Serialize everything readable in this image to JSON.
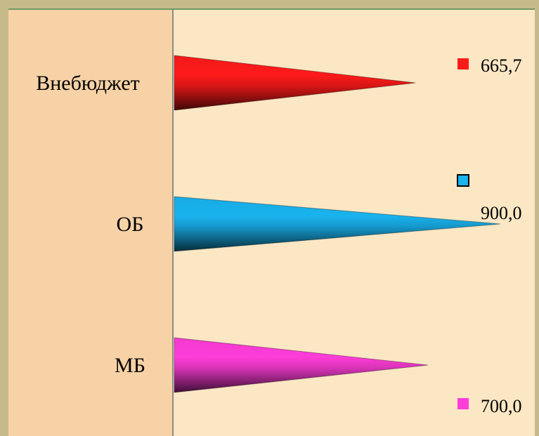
{
  "chart_data": {
    "type": "bar",
    "categories": [
      "Внебюджет",
      "ОБ",
      "МБ"
    ],
    "values": [
      665.7,
      900.0,
      700.0
    ],
    "value_labels": [
      "665,7",
      "900,0",
      "700,0"
    ],
    "bar_style": "cone",
    "orientation": "horizontal",
    "colors": [
      "#ff1a1a",
      "#19b3ee",
      "#ff3dd9"
    ],
    "title": "",
    "xlabel": "",
    "ylabel": "",
    "xlim": [
      0,
      900
    ],
    "legend": "right"
  },
  "colors": {
    "background": "#fbe7c4",
    "category_panel": "#f7d2a6",
    "frame": "#c6b98a",
    "frame_line": "#6f9a62",
    "axis": "#8c8c8c"
  }
}
